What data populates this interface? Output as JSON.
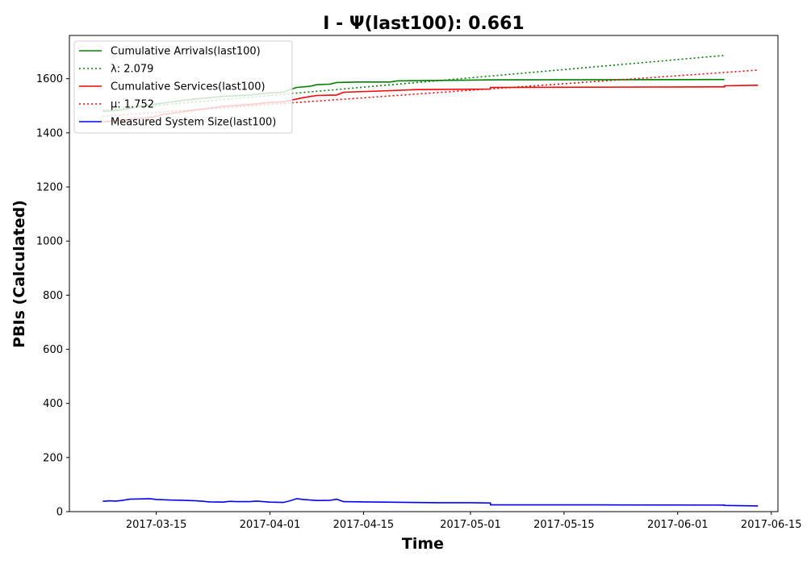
{
  "chart_data": {
    "type": "line",
    "title": "I -  Ψ(last100): 0.661",
    "xlabel": "Time",
    "ylabel": "PBIs (Calculated)",
    "xlim": [
      "2017-03-02",
      "2017-06-16"
    ],
    "ylim": [
      0,
      1760
    ],
    "x_ticks": [
      "2017-03-15",
      "2017-04-01",
      "2017-04-15",
      "2017-05-01",
      "2017-05-15",
      "2017-06-01",
      "2017-06-15"
    ],
    "y_ticks": [
      0,
      200,
      400,
      600,
      800,
      1000,
      1200,
      1400,
      1600
    ],
    "legend_position": "top-left",
    "grid": false,
    "series": [
      {
        "name": "Cumulative Arrivals(last100)",
        "color": "#008000",
        "style": "solid",
        "points": [
          [
            "2017-03-07",
            1479
          ],
          [
            "2017-03-10",
            1485
          ],
          [
            "2017-03-13",
            1500
          ],
          [
            "2017-03-16",
            1510
          ],
          [
            "2017-03-19",
            1520
          ],
          [
            "2017-03-22",
            1528
          ],
          [
            "2017-03-25",
            1535
          ],
          [
            "2017-03-29",
            1540
          ],
          [
            "2017-04-01",
            1548
          ],
          [
            "2017-04-03",
            1550
          ],
          [
            "2017-04-04",
            1560
          ],
          [
            "2017-04-05",
            1568
          ],
          [
            "2017-04-07",
            1572
          ],
          [
            "2017-04-08",
            1578
          ],
          [
            "2017-04-10",
            1580
          ],
          [
            "2017-04-11",
            1586
          ],
          [
            "2017-04-14",
            1588
          ],
          [
            "2017-04-19",
            1588
          ],
          [
            "2017-04-20",
            1592
          ],
          [
            "2017-04-28",
            1594
          ],
          [
            "2017-05-05",
            1596
          ],
          [
            "2017-06-08",
            1597
          ]
        ]
      },
      {
        "name": "λ: 2.079",
        "color": "#008000",
        "style": "dotted",
        "points": [
          [
            "2017-03-07",
            1484
          ],
          [
            "2017-06-08",
            1686
          ]
        ]
      },
      {
        "name": "Cumulative Services(last100)",
        "color": "#ff0000",
        "style": "solid",
        "points": [
          [
            "2017-03-07",
            1440
          ],
          [
            "2017-03-10",
            1448
          ],
          [
            "2017-03-14",
            1456
          ],
          [
            "2017-03-16",
            1468
          ],
          [
            "2017-03-19",
            1478
          ],
          [
            "2017-03-22",
            1488
          ],
          [
            "2017-03-25",
            1498
          ],
          [
            "2017-03-29",
            1505
          ],
          [
            "2017-04-01",
            1512
          ],
          [
            "2017-04-03",
            1515
          ],
          [
            "2017-04-04",
            1520
          ],
          [
            "2017-04-06",
            1530
          ],
          [
            "2017-04-08",
            1538
          ],
          [
            "2017-04-11",
            1540
          ],
          [
            "2017-04-12",
            1550
          ],
          [
            "2017-04-19",
            1556
          ],
          [
            "2017-04-23",
            1560
          ],
          [
            "2017-05-04",
            1562
          ],
          [
            "2017-05-04",
            1568
          ],
          [
            "2017-06-08",
            1570
          ],
          [
            "2017-06-08",
            1574
          ],
          [
            "2017-06-13",
            1576
          ]
        ]
      },
      {
        "name": "μ: 1.752",
        "color": "#ff0000",
        "style": "dotted",
        "points": [
          [
            "2017-03-07",
            1462
          ],
          [
            "2017-06-13",
            1632
          ]
        ]
      },
      {
        "name": "Measured System Size(last100)",
        "color": "#0000ff",
        "style": "solid",
        "points": [
          [
            "2017-03-07",
            38
          ],
          [
            "2017-03-08",
            40
          ],
          [
            "2017-03-09",
            39
          ],
          [
            "2017-03-10",
            42
          ],
          [
            "2017-03-11",
            46
          ],
          [
            "2017-03-13",
            47
          ],
          [
            "2017-03-14",
            48
          ],
          [
            "2017-03-15",
            45
          ],
          [
            "2017-03-17",
            43
          ],
          [
            "2017-03-19",
            42
          ],
          [
            "2017-03-21",
            40
          ],
          [
            "2017-03-22",
            38
          ],
          [
            "2017-03-23",
            36
          ],
          [
            "2017-03-25",
            35
          ],
          [
            "2017-03-26",
            38
          ],
          [
            "2017-03-27",
            37
          ],
          [
            "2017-03-29",
            37
          ],
          [
            "2017-03-30",
            39
          ],
          [
            "2017-03-31",
            37
          ],
          [
            "2017-04-01",
            35
          ],
          [
            "2017-04-03",
            34
          ],
          [
            "2017-04-04",
            40
          ],
          [
            "2017-04-05",
            48
          ],
          [
            "2017-04-06",
            45
          ],
          [
            "2017-04-07",
            43
          ],
          [
            "2017-04-08",
            41
          ],
          [
            "2017-04-10",
            42
          ],
          [
            "2017-04-11",
            46
          ],
          [
            "2017-04-12",
            37
          ],
          [
            "2017-04-15",
            36
          ],
          [
            "2017-04-18",
            35
          ],
          [
            "2017-04-22",
            34
          ],
          [
            "2017-04-26",
            33
          ],
          [
            "2017-05-01",
            33
          ],
          [
            "2017-05-04",
            32
          ],
          [
            "2017-05-04",
            25
          ],
          [
            "2017-05-20",
            25
          ],
          [
            "2017-06-08",
            24
          ],
          [
            "2017-06-08",
            23
          ],
          [
            "2017-06-13",
            21
          ]
        ]
      }
    ]
  }
}
